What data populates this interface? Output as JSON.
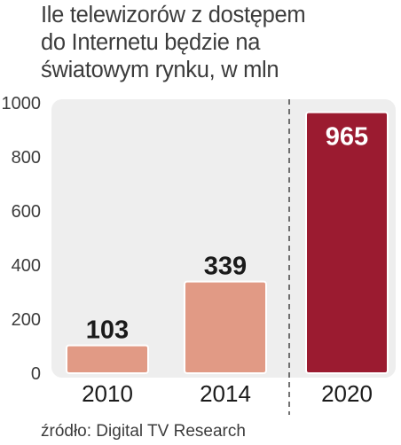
{
  "title_lines": [
    "Ile telewizorów z dostępem",
    "do Internetu będzie na",
    "światowym rynku, w mln"
  ],
  "source": "źródło: Digital TV Research",
  "colors": {
    "bar": "#e19a85",
    "highlight": "#9b1b30",
    "background_panel": "#eeeeee"
  },
  "chart_data": {
    "type": "bar",
    "title": "Ile telewizorów z dostępem do Internetu będzie na światowym rynku, w mln",
    "categories": [
      "2010",
      "2014",
      "2020"
    ],
    "values": [
      103,
      339,
      965
    ],
    "value_labels": [
      "103",
      "339",
      "965"
    ],
    "highlighted": [
      "2020"
    ],
    "ylim": [
      0,
      1000
    ],
    "yticks": [
      "0",
      "200",
      "400",
      "600",
      "800",
      "1000"
    ],
    "grid": false,
    "forecast_separator": "dashed line before 2020"
  }
}
